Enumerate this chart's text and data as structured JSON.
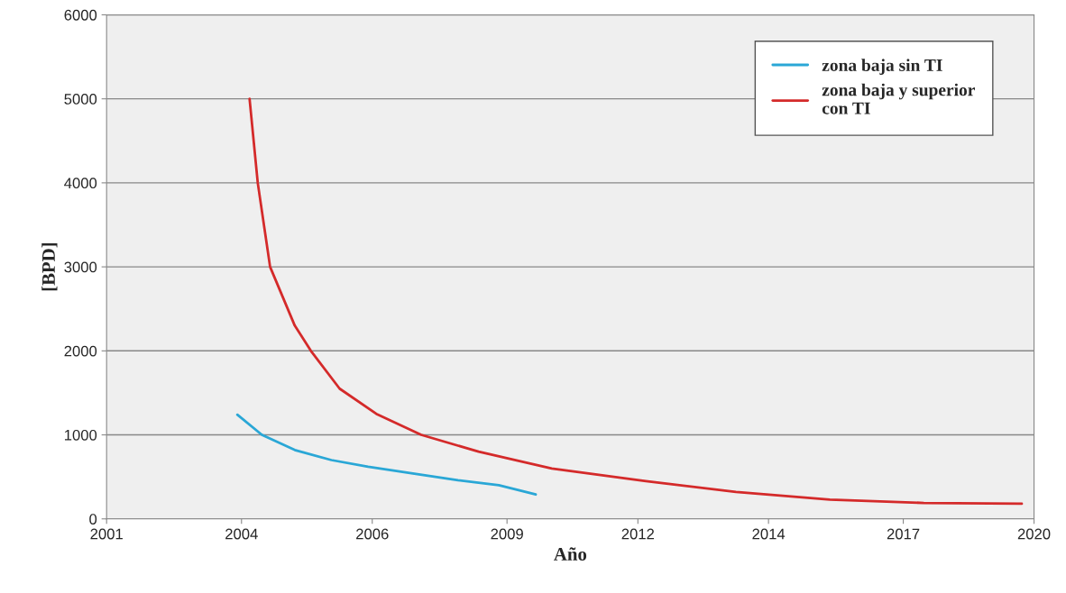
{
  "chart_data": {
    "type": "line",
    "xlabel": "Año",
    "ylabel": "[BPD]",
    "series": [
      {
        "name": "zona baja sin TI",
        "color": "#2aa7d6",
        "x": [
          "2003-12",
          "2004-06",
          "2005-02",
          "2005-11",
          "2006-08",
          "2007-07",
          "2008-06",
          "2009-04",
          "2010-01"
        ],
        "values": [
          1240,
          1000,
          820,
          700,
          620,
          540,
          460,
          400,
          290
        ]
      },
      {
        "name": "zona baja y superior\ncon TI",
        "color": "#d42a2a",
        "x": [
          "2004-03",
          "2004-05",
          "2004-08",
          "2005-02",
          "2005-06",
          "2006-01",
          "2006-10",
          "2007-09",
          "2008-11",
          "2010-05",
          "2012-04",
          "2014-02",
          "2016-01",
          "2017-12",
          "2019-12"
        ],
        "values": [
          5000,
          4000,
          3000,
          2300,
          2000,
          1550,
          1250,
          1000,
          800,
          600,
          450,
          320,
          230,
          190,
          180
        ]
      }
    ],
    "xlim": [
      "2001-04",
      "2020-03"
    ],
    "xticks": [
      {
        "value": "2001-04",
        "label": "2001"
      },
      {
        "value": "2004-01",
        "label": "2004"
      },
      {
        "value": "2006-09",
        "label": "2006"
      },
      {
        "value": "2009-06",
        "label": "2009"
      },
      {
        "value": "2012-02",
        "label": "2012"
      },
      {
        "value": "2014-10",
        "label": "2014"
      },
      {
        "value": "2017-07",
        "label": "2017"
      },
      {
        "value": "2020-03",
        "label": "2020"
      }
    ],
    "ylim": [
      0,
      6000
    ],
    "yticks": [
      0,
      1000,
      2000,
      3000,
      4000,
      5000,
      6000
    ],
    "grid": "y",
    "legend": "top right",
    "marker": "none",
    "line_style": "solid"
  }
}
